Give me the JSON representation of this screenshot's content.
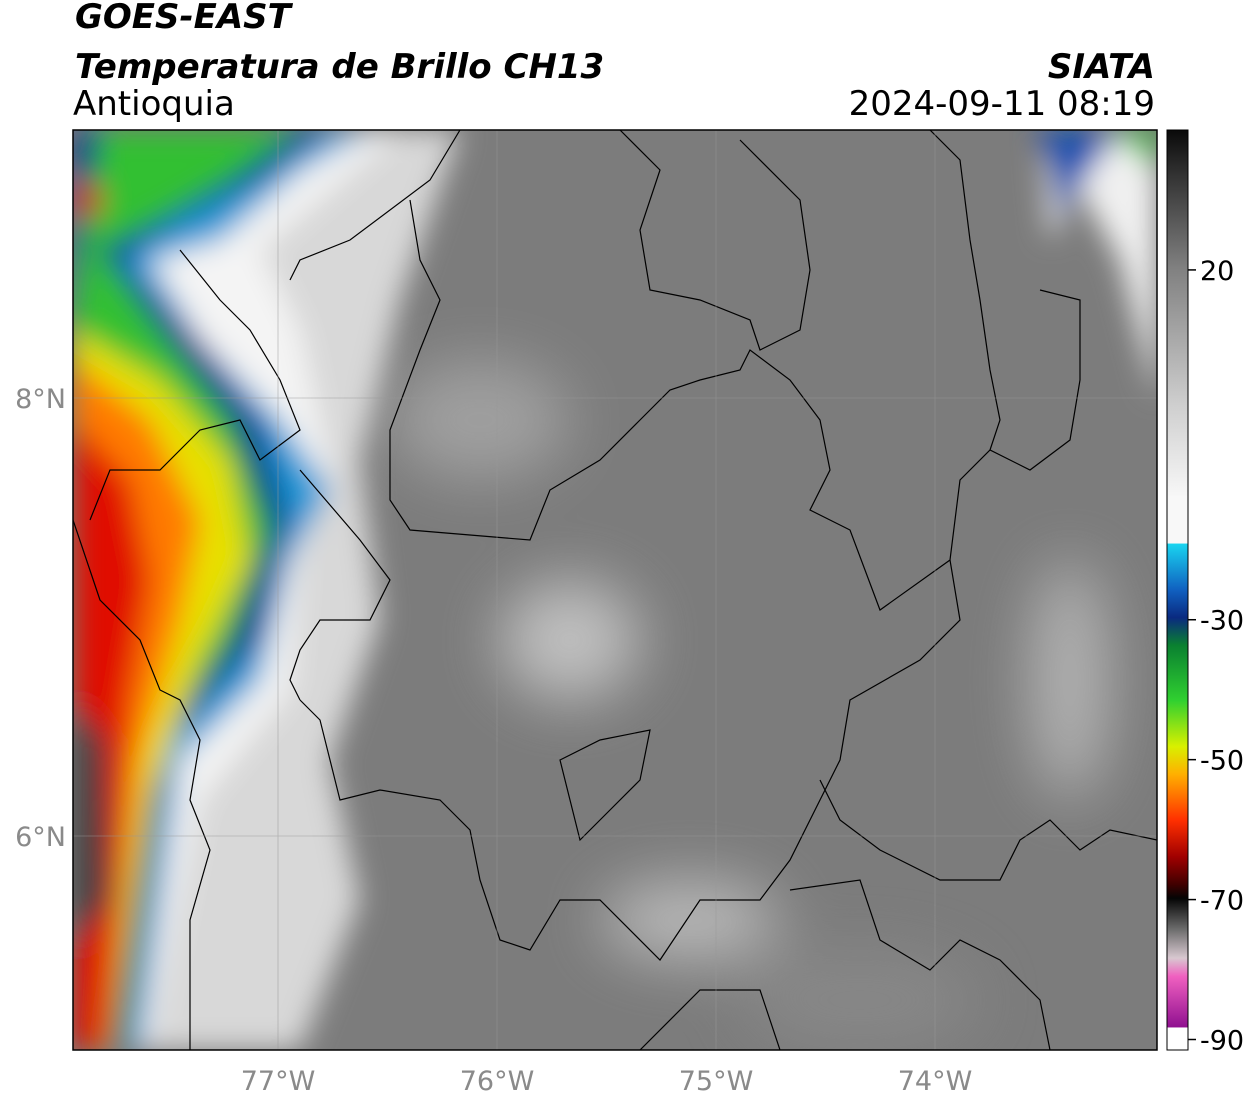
{
  "header": {
    "product": "GOES-EAST",
    "title": "Temperatura de Brillo CH13",
    "region": "Antioquia",
    "source": "SIATA",
    "datetime": "2024-09-11 08:19"
  },
  "map": {
    "lat_ticks": [
      "8°N",
      "6°N"
    ],
    "lon_ticks": [
      "77°W",
      "76°W",
      "75°W",
      "74°W"
    ]
  },
  "colorbar": {
    "range": [
      -91.5,
      40
    ],
    "ticks": [
      20,
      -30,
      -50,
      -70,
      -90
    ]
  }
}
